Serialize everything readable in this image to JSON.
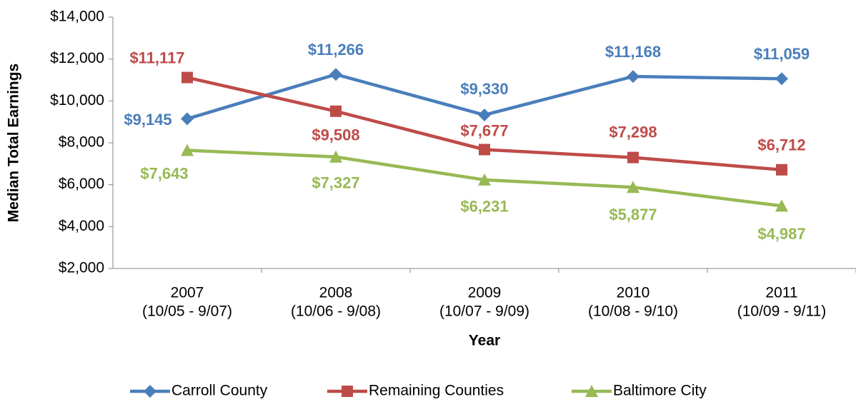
{
  "chart_data": {
    "type": "line",
    "x_label": "Year",
    "y_label": "Median Total Earnings",
    "categories": [
      [
        "2007",
        "(10/05 - 9/07)"
      ],
      [
        "2008",
        "(10/06 - 9/08)"
      ],
      [
        "2009",
        "(10/07 - 9/09)"
      ],
      [
        "2010",
        "(10/08 - 9/10)"
      ],
      [
        "2011",
        "(10/09 - 9/11)"
      ]
    ],
    "series": [
      {
        "name": "Carroll County",
        "color": "#4a7ebb",
        "marker": "diamond",
        "values": [
          9145,
          11266,
          9330,
          11168,
          11059
        ],
        "value_labels": [
          "$9,145",
          "$11,266",
          "$9,330",
          "$11,168",
          "$11,059"
        ]
      },
      {
        "name": "Remaining Counties",
        "color": "#be4b48",
        "marker": "square",
        "values": [
          11117,
          9508,
          7677,
          7298,
          6712
        ],
        "value_labels": [
          "$11,117",
          "$9,508",
          "$7,677",
          "$7,298",
          "$6,712"
        ]
      },
      {
        "name": "Baltimore City",
        "color": "#98b954",
        "marker": "triangle",
        "values": [
          7643,
          7327,
          6231,
          5877,
          4987
        ],
        "value_labels": [
          "$7,643",
          "$7,327",
          "$6,231",
          "$5,877",
          "$4,987"
        ]
      }
    ],
    "ylim": [
      2000,
      14000
    ],
    "yticks": [
      {
        "value": 2000,
        "label": "$2,000"
      },
      {
        "value": 4000,
        "label": "$4,000"
      },
      {
        "value": 6000,
        "label": "$6,000"
      },
      {
        "value": 8000,
        "label": "$8,000"
      },
      {
        "value": 10000,
        "label": "$10,000"
      },
      {
        "value": 12000,
        "label": "$12,000"
      },
      {
        "value": 14000,
        "label": "$14,000"
      }
    ],
    "legend": "bottom"
  }
}
